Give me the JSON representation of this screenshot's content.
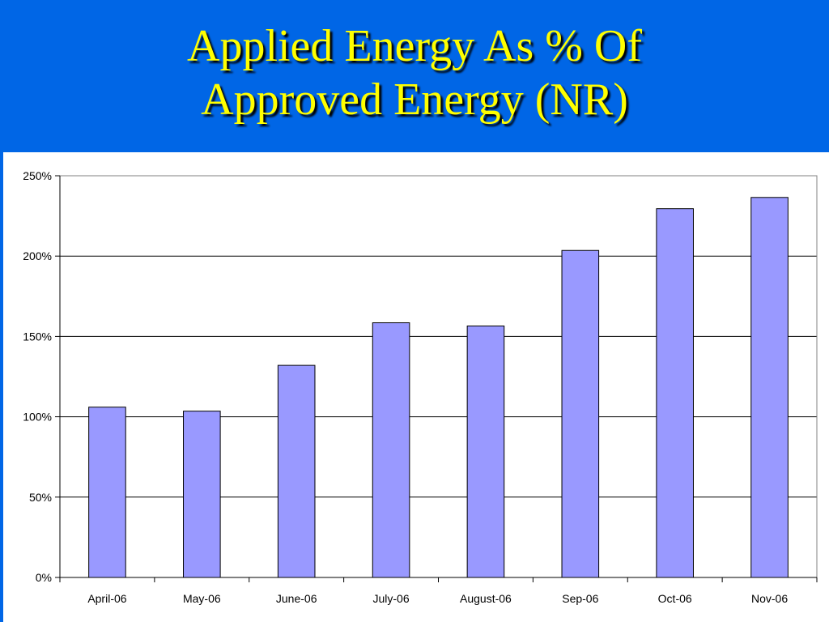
{
  "title": {
    "line1": "Applied Energy As % Of",
    "line2": "Approved Energy (NR)"
  },
  "colors": {
    "title_band": "#0066e6",
    "title_text": "#ffff00",
    "bar_fill": "#9999ff",
    "bar_stroke": "#000000",
    "gridline": "#000000"
  },
  "chart_data": {
    "type": "bar",
    "categories": [
      "April-06",
      "May-06",
      "June-06",
      "July-06",
      "August-06",
      "Sep-06",
      "Oct-06",
      "Nov-06"
    ],
    "values": [
      106,
      103.5,
      132,
      158.5,
      156.5,
      203.5,
      229.5,
      236.5
    ],
    "value_unit": "%",
    "ylim": [
      0,
      250
    ],
    "yticks": [
      0,
      50,
      100,
      150,
      200,
      250
    ],
    "ytick_labels": [
      "0%",
      "50%",
      "100%",
      "150%",
      "200%",
      "250%"
    ],
    "grid": true,
    "legend": "none",
    "xlabel": "",
    "ylabel": ""
  }
}
